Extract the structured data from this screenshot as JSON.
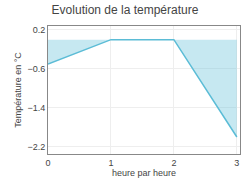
{
  "chart_data": {
    "type": "area",
    "title": "Evolution de la température",
    "xlabel": "heure par heure",
    "ylabel": "Température en °C",
    "x": [
      0,
      1,
      2,
      3
    ],
    "values": [
      -0.5,
      0.0,
      0.0,
      -2.0
    ],
    "color": "#5bbcd6",
    "xlim": [
      0,
      3.05
    ],
    "xticks": [
      0,
      1,
      2,
      3
    ],
    "ylim": [
      -2.35,
      0.28
    ],
    "yticks": [
      0.2,
      -0.6,
      -1.4,
      -2.2
    ],
    "grid": true
  }
}
